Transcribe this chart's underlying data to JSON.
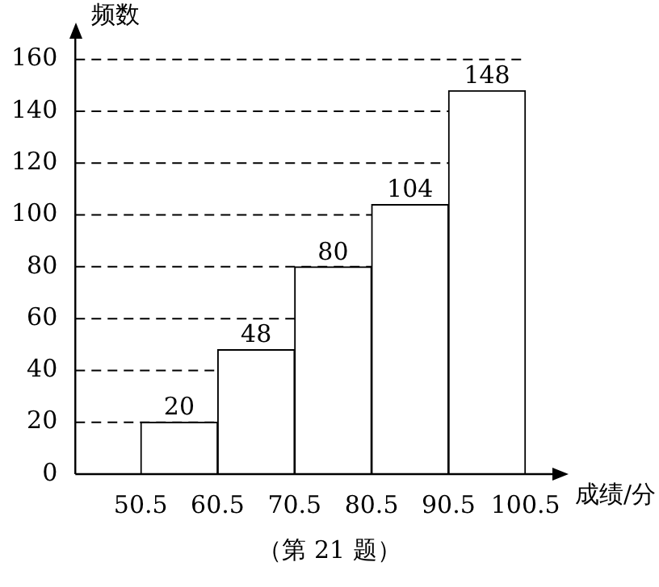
{
  "chart_data": {
    "type": "histogram",
    "bins": [
      50.5,
      60.5,
      70.5,
      80.5,
      90.5,
      100.5
    ],
    "values": [
      20,
      48,
      80,
      104,
      148
    ],
    "color": "#ffffff",
    "xlim": [
      42,
      104
    ],
    "xticks": [
      50.5,
      60.5,
      70.5,
      80.5,
      90.5,
      100.5
    ],
    "ylim": [
      0,
      168
    ],
    "yticks": [
      0,
      20,
      40,
      60,
      80,
      100,
      120,
      140,
      160
    ],
    "xlabel": "成绩/分",
    "ylabel": "频数",
    "grid": "y",
    "line_style": "dashed",
    "data_labels": true,
    "annotations": [
      "（第 21 题）"
    ]
  }
}
